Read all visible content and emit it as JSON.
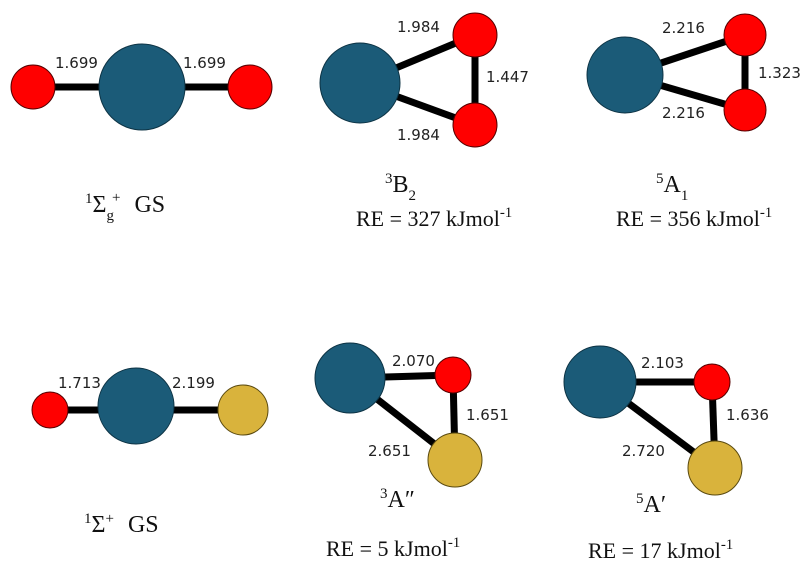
{
  "molecules": [
    {
      "bonds": [
        "1.699",
        "1.699"
      ],
      "state": {
        "multiplicity": "1",
        "symbol": "Σ",
        "subscript": "g",
        "superscript": "+",
        "suffix": "GS"
      }
    },
    {
      "bonds": [
        "1.984",
        "1.447",
        "1.984"
      ],
      "state": {
        "multiplicity": "3",
        "symbol": "B",
        "subscript": "2"
      },
      "relative_energy": {
        "text": "RE = 327 kJmol",
        "exponent": "-1"
      }
    },
    {
      "bonds": [
        "2.216",
        "1.323",
        "2.216"
      ],
      "state": {
        "multiplicity": "5",
        "symbol": "A",
        "subscript": "1"
      },
      "relative_energy": {
        "text": "RE = 356 kJmol",
        "exponent": "-1"
      }
    },
    {
      "bonds": [
        "1.713",
        "2.199"
      ],
      "state": {
        "multiplicity": "1",
        "symbol": "Σ",
        "superscript": "+",
        "suffix": "GS"
      }
    },
    {
      "bonds": [
        "2.070",
        "1.651",
        "2.651"
      ],
      "state": {
        "multiplicity": "3",
        "symbol": "A″"
      },
      "relative_energy": {
        "text": "RE = 5 kJmol",
        "exponent": "-1"
      }
    },
    {
      "bonds": [
        "2.103",
        "1.636",
        "2.720"
      ],
      "state": {
        "multiplicity": "5",
        "symbol": "A′"
      },
      "relative_energy": {
        "text": "RE = 17 kJmol",
        "exponent": "-1"
      }
    }
  ]
}
